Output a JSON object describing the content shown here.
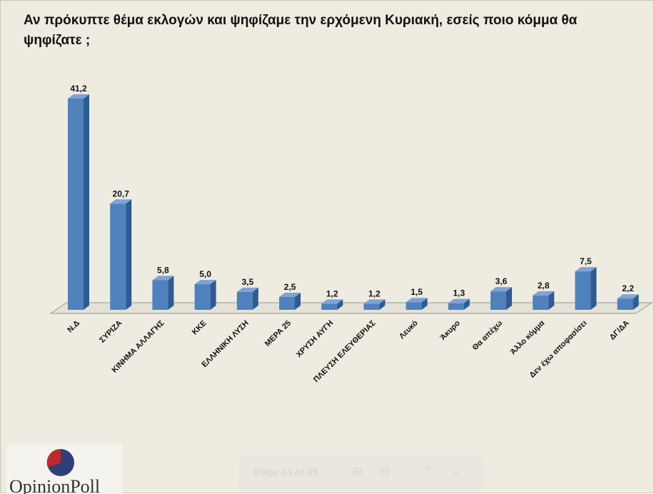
{
  "title": "Αν πρόκυπτε θέμα εκλογών και ψηφίζαμε την ερχόμενη Κυριακή, εσείς ποιο κόμμα θα ψηφίζατε ;",
  "colors": {
    "bar_front": "#4f81bd",
    "bar_side": "#2e5b91",
    "bar_top": "#7fa3d6",
    "background": "#eeece1",
    "logo_red": "#c0282d",
    "logo_blue": "#2e3f7a"
  },
  "chart_data": {
    "type": "bar",
    "categories": [
      "Ν.Δ",
      "ΣΥΡΙΖΑ",
      "ΚΙΝΗΜΑ ΑΛΛΑΓΗΣ",
      "ΚΚΕ",
      "ΕΛΛΗΝΙΚΗ ΛΥΣΗ",
      "ΜΕΡΑ 25",
      "ΧΡΥΣΗ ΑΥΓΗ",
      "ΠΛΕΥΣΗ ΕΛΕΥΘΕΡΙΑΣ",
      "Λευκό",
      "Άκυρο",
      "Θα απέχω",
      "Άλλο κόμμα",
      "Δεν έχω αποφασίσει",
      "ΔΓ/ΔΑ"
    ],
    "values": [
      41.2,
      20.7,
      5.8,
      5.0,
      3.5,
      2.5,
      1.2,
      1.2,
      1.5,
      1.3,
      3.6,
      2.8,
      7.5,
      2.2
    ],
    "value_labels": [
      "41,2",
      "20,7",
      "5,8",
      "5,0",
      "3,5",
      "2,5",
      "1,2",
      "1,2",
      "1,5",
      "1,3",
      "3,6",
      "2,8",
      "7,5",
      "2,2"
    ],
    "title": "Αν πρόκυπτε θέμα εκλογών και ψηφίζαμε την ερχόμενη Κυριακή, εσείς ποιο κόμμα θα ψηφίζατε ;",
    "xlabel": "",
    "ylabel": "",
    "ylim": [
      0,
      41.2
    ],
    "grid": false,
    "style": "3d-column"
  },
  "logo": {
    "text": "OpinionPoll"
  },
  "toolbar": {
    "page_indicator": "Page 14 of 65",
    "zoom_in_icon": "zoom-in-icon",
    "zoom_out_icon": "zoom-out-icon",
    "prev_icon": "chevron-up-icon",
    "next_icon": "chevron-down-icon"
  }
}
